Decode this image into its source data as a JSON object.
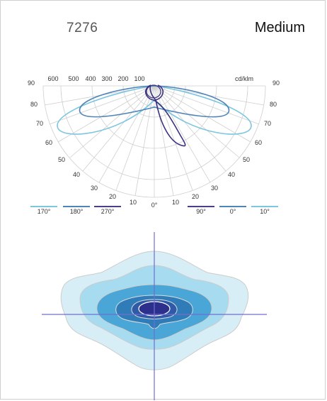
{
  "header": {
    "product_code": "7276",
    "variant": "Medium"
  },
  "polar_diagram": {
    "unit_label": "cd/klm",
    "intensity_ticks": [
      "600",
      "500",
      "400",
      "300",
      "200",
      "100"
    ],
    "left_angle_labels": [
      "90",
      "80",
      "70",
      "60",
      "50",
      "40",
      "30",
      "20",
      "10"
    ],
    "right_angle_labels": [
      "90",
      "80",
      "70",
      "60",
      "50",
      "40",
      "30",
      "20",
      "10"
    ],
    "nadir_label": "0°",
    "left_nadir_label": "0°",
    "legend": [
      {
        "label": "170°",
        "color": "#7cc6df"
      },
      {
        "label": "180°",
        "color": "#4f84b8"
      },
      {
        "label": "270°",
        "color": "#4a3f8c"
      },
      {
        "label": "90°",
        "color": "#4a3f8c"
      },
      {
        "label": "0°",
        "color": "#4f84b8"
      },
      {
        "label": "10°",
        "color": "#7cc6df"
      }
    ]
  },
  "isolux_diagram": {
    "zone_colors": [
      "#d8eef6",
      "#a7dbef",
      "#4aa6d6",
      "#2f7cb8",
      "#2e5aa8",
      "#2d2f8c"
    ],
    "axis_color": "#6f6fd0",
    "outline_color": "#cccccc"
  }
}
